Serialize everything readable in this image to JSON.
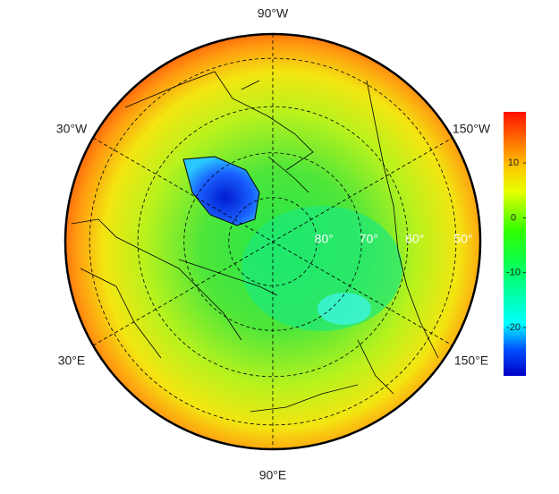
{
  "map": {
    "longitude_labels": [
      "90°W",
      "30°W",
      "150°W",
      "30°E",
      "150°E",
      "90°E"
    ],
    "latitude_labels": [
      {
        "value": 80,
        "label": "80°"
      },
      {
        "value": 70,
        "label": "70°"
      },
      {
        "value": 60,
        "label": "60°"
      },
      {
        "value": 50,
        "label": "50°"
      }
    ]
  },
  "colorbar": {
    "range": [
      -28.8,
      19.3
    ],
    "ticks": [
      10,
      0,
      -10,
      -20
    ]
  }
}
